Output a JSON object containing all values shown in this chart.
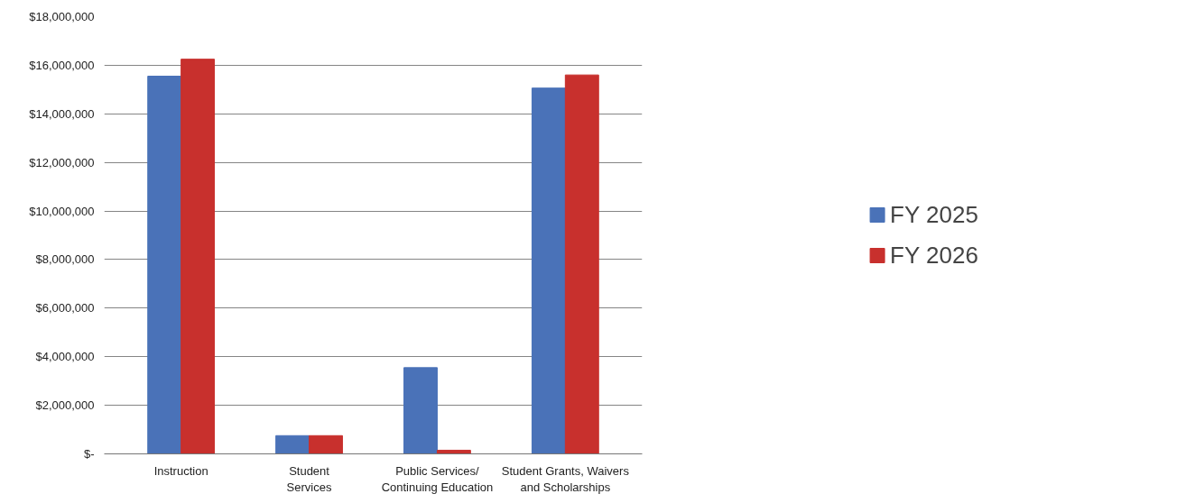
{
  "chart_data": {
    "type": "bar",
    "categories": [
      "Instruction",
      "Student\nServices",
      "Public Services/\nContinuing Education",
      "Student Grants, Waivers\nand Scholarships"
    ],
    "series": [
      {
        "name": "FY 2025",
        "color": "#4a72b8",
        "values": [
          15550000,
          750000,
          3550000,
          15060000
        ]
      },
      {
        "name": "FY 2026",
        "color": "#c8302d",
        "values": [
          16250000,
          750000,
          150000,
          15600000
        ]
      }
    ],
    "ylim": [
      0,
      18000000
    ],
    "yticks": [
      {
        "value": 0,
        "label": "$-"
      },
      {
        "value": 2000000,
        "label": "$2,000,000"
      },
      {
        "value": 4000000,
        "label": "$4,000,000"
      },
      {
        "value": 6000000,
        "label": "$6,000,000"
      },
      {
        "value": 8000000,
        "label": "$8,000,000"
      },
      {
        "value": 10000000,
        "label": "$10,000,000"
      },
      {
        "value": 12000000,
        "label": "$12,000,000"
      },
      {
        "value": 14000000,
        "label": "$14,000,000"
      },
      {
        "value": 16000000,
        "label": "$16,000,000"
      },
      {
        "value": 18000000,
        "label": "$18,000,000"
      }
    ],
    "grid": "y",
    "legend": "right"
  }
}
